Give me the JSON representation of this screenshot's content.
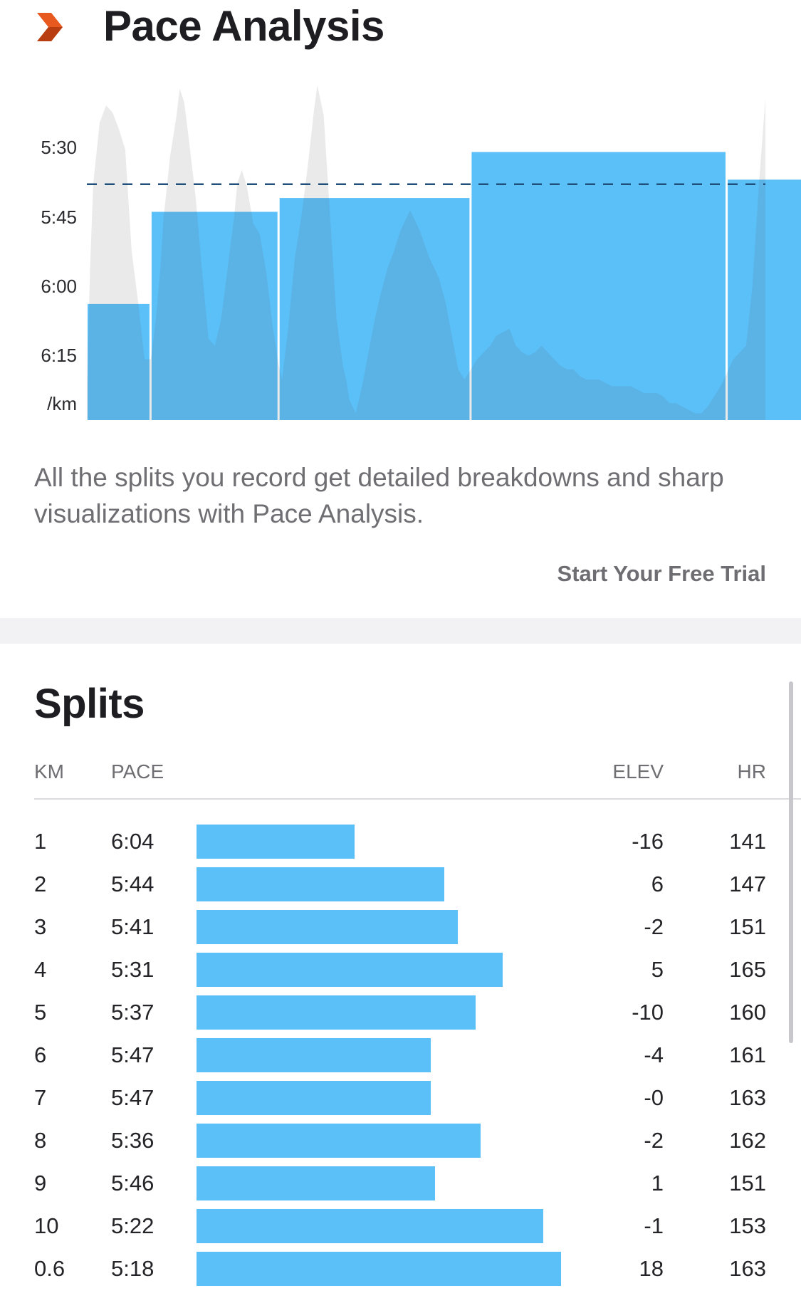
{
  "pace_analysis": {
    "icon": "premium-chevron-icon",
    "title": "Pace Analysis",
    "description": "All the splits you record get detailed breakdowns and sharp visualizations with Pace Analysis.",
    "cta": "Start Your Free Trial",
    "colors": {
      "bar": "#5bbff8",
      "average_line": "#1f4f7a",
      "elevation_area": "#e6e6e9",
      "icon": "#e8591f"
    }
  },
  "chart_data": {
    "type": "bar",
    "categories": [
      "1",
      "2",
      "3",
      "4",
      "5",
      "6",
      "7",
      "8",
      "9",
      "10",
      "0.6"
    ],
    "series": [
      {
        "values": [
          364,
          344,
          341,
          331,
          337,
          347,
          347,
          336,
          346,
          322,
          318
        ]
      }
    ],
    "value_unit": "seconds per km",
    "y_tick_labels": [
      "5:30",
      "5:45",
      "6:00",
      "6:15",
      "/km"
    ],
    "y_ticks_seconds": [
      330,
      345,
      360,
      375
    ],
    "y_reversed": true,
    "average_pace_seconds": 338,
    "average_line_style": "dashed",
    "elevation_profile": [
      [
        0,
        10
      ],
      [
        0.05,
        45
      ],
      [
        0.1,
        70
      ],
      [
        0.2,
        88
      ],
      [
        0.3,
        93
      ],
      [
        0.4,
        91
      ],
      [
        0.5,
        86
      ],
      [
        0.6,
        80
      ],
      [
        0.7,
        50
      ],
      [
        0.8,
        35
      ],
      [
        0.9,
        18
      ],
      [
        1.0,
        18
      ],
      [
        1.08,
        30
      ],
      [
        1.15,
        45
      ],
      [
        1.2,
        60
      ],
      [
        1.3,
        78
      ],
      [
        1.4,
        90
      ],
      [
        1.45,
        98
      ],
      [
        1.52,
        94
      ],
      [
        1.6,
        82
      ],
      [
        1.7,
        66
      ],
      [
        1.8,
        44
      ],
      [
        1.9,
        24
      ],
      [
        2.0,
        22
      ],
      [
        2.1,
        30
      ],
      [
        2.2,
        45
      ],
      [
        2.3,
        60
      ],
      [
        2.35,
        70
      ],
      [
        2.42,
        74
      ],
      [
        2.5,
        69
      ],
      [
        2.6,
        58
      ],
      [
        2.7,
        55
      ],
      [
        2.8,
        44
      ],
      [
        2.9,
        28
      ],
      [
        3.0,
        16
      ],
      [
        3.05,
        12
      ],
      [
        3.15,
        28
      ],
      [
        3.25,
        48
      ],
      [
        3.35,
        60
      ],
      [
        3.45,
        75
      ],
      [
        3.55,
        92
      ],
      [
        3.6,
        99
      ],
      [
        3.7,
        90
      ],
      [
        3.8,
        60
      ],
      [
        3.9,
        30
      ],
      [
        4.0,
        16
      ],
      [
        4.05,
        12
      ],
      [
        4.1,
        6
      ],
      [
        4.2,
        2
      ],
      [
        4.3,
        10
      ],
      [
        4.4,
        20
      ],
      [
        4.5,
        30
      ],
      [
        4.6,
        38
      ],
      [
        4.7,
        45
      ],
      [
        4.8,
        50
      ],
      [
        4.9,
        56
      ],
      [
        5.0,
        60
      ],
      [
        5.05,
        62
      ],
      [
        5.2,
        56
      ],
      [
        5.35,
        48
      ],
      [
        5.5,
        42
      ],
      [
        5.6,
        35
      ],
      [
        5.7,
        25
      ],
      [
        5.8,
        15
      ],
      [
        5.9,
        12
      ],
      [
        6.0,
        15
      ],
      [
        6.1,
        18
      ],
      [
        6.2,
        20
      ],
      [
        6.3,
        22
      ],
      [
        6.4,
        25
      ],
      [
        6.5,
        26
      ],
      [
        6.6,
        27
      ],
      [
        6.7,
        22
      ],
      [
        6.8,
        20
      ],
      [
        6.9,
        19
      ],
      [
        7.0,
        20
      ],
      [
        7.1,
        22
      ],
      [
        7.2,
        20
      ],
      [
        7.3,
        18
      ],
      [
        7.4,
        16
      ],
      [
        7.5,
        15
      ],
      [
        7.6,
        15
      ],
      [
        7.7,
        13
      ],
      [
        7.8,
        12
      ],
      [
        7.9,
        12
      ],
      [
        8.0,
        12
      ],
      [
        8.1,
        11
      ],
      [
        8.2,
        10
      ],
      [
        8.3,
        10
      ],
      [
        8.4,
        10
      ],
      [
        8.5,
        10
      ],
      [
        8.6,
        9
      ],
      [
        8.7,
        8
      ],
      [
        8.8,
        8
      ],
      [
        8.9,
        8
      ],
      [
        9.0,
        7
      ],
      [
        9.1,
        5
      ],
      [
        9.2,
        5
      ],
      [
        9.3,
        4
      ],
      [
        9.4,
        3
      ],
      [
        9.5,
        2
      ],
      [
        9.6,
        2
      ],
      [
        9.7,
        4
      ],
      [
        9.8,
        7
      ],
      [
        9.9,
        10
      ],
      [
        10.0,
        14
      ],
      [
        10.1,
        18
      ],
      [
        10.2,
        20
      ],
      [
        10.3,
        22
      ],
      [
        10.4,
        40
      ],
      [
        10.5,
        70
      ],
      [
        10.6,
        95
      ]
    ]
  },
  "splits": {
    "title": "Splits",
    "columns": {
      "km": "KM",
      "pace": "PACE",
      "elev": "ELEV",
      "hr": "HR"
    },
    "rows": [
      {
        "km": "1",
        "pace": "6:04",
        "elev": "-16",
        "hr": "141",
        "pace_seconds": 364
      },
      {
        "km": "2",
        "pace": "5:44",
        "elev": "6",
        "hr": "147",
        "pace_seconds": 344
      },
      {
        "km": "3",
        "pace": "5:41",
        "elev": "-2",
        "hr": "151",
        "pace_seconds": 341
      },
      {
        "km": "4",
        "pace": "5:31",
        "elev": "5",
        "hr": "165",
        "pace_seconds": 331
      },
      {
        "km": "5",
        "pace": "5:37",
        "elev": "-10",
        "hr": "160",
        "pace_seconds": 337
      },
      {
        "km": "6",
        "pace": "5:47",
        "elev": "-4",
        "hr": "161",
        "pace_seconds": 347
      },
      {
        "km": "7",
        "pace": "5:47",
        "elev": "-0",
        "hr": "163",
        "pace_seconds": 347
      },
      {
        "km": "8",
        "pace": "5:36",
        "elev": "-2",
        "hr": "162",
        "pace_seconds": 336
      },
      {
        "km": "9",
        "pace": "5:46",
        "elev": "1",
        "hr": "151",
        "pace_seconds": 346
      },
      {
        "km": "10",
        "pace": "5:22",
        "elev": "-1",
        "hr": "153",
        "pace_seconds": 322
      },
      {
        "km": "0.6",
        "pace": "5:18",
        "elev": "18",
        "hr": "163",
        "pace_seconds": 318
      }
    ]
  }
}
